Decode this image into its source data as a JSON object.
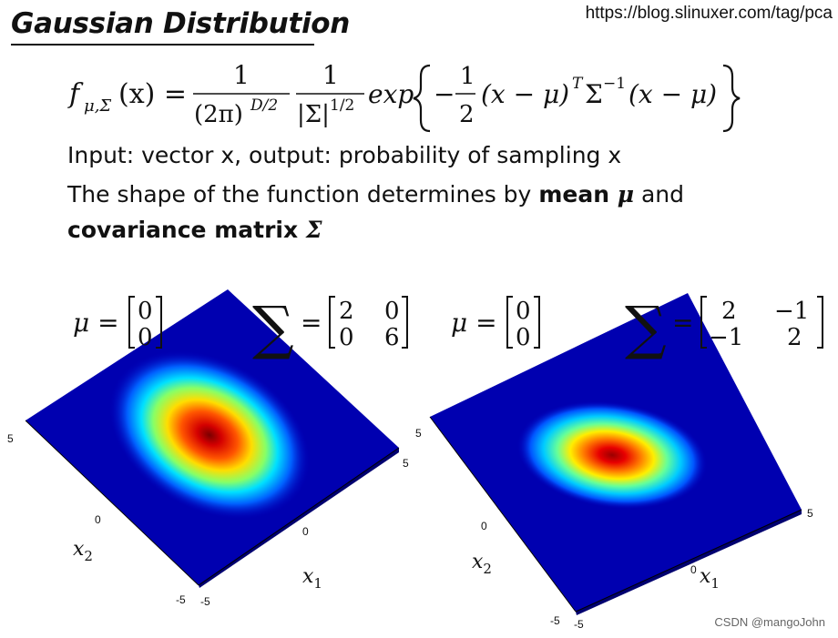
{
  "header": {
    "title": "Gaussian Distribution",
    "source_url": "https://blog.slinuxer.com/tag/pca"
  },
  "formula": {
    "lhs_f": "f",
    "lhs_sub": "μ,Σ",
    "lhs_arg": "(x) =",
    "frac1_num": "1",
    "frac1_den": "(2π)",
    "frac1_den_exp": "D/2",
    "frac2_num": "1",
    "frac2_den": "|Σ|",
    "frac2_den_exp": "1/2",
    "exp_word": "exp",
    "minus": "−",
    "half_num": "1",
    "half_den": "2",
    "term1": "(x − μ)",
    "term1_exp": "T",
    "sigma": "Σ",
    "sigma_exp": "−1",
    "term2": "(x − μ)"
  },
  "text": {
    "line1": "Input: vector x, output: probability of sampling x",
    "line2_prefix": "The shape of the function determines by ",
    "line2_bold": "mean ",
    "line2_bold_sym": "μ",
    "line2_suffix": " and",
    "line3_bold": "covariance matrix ",
    "line3_bold_sym": "Σ"
  },
  "plots": {
    "left": {
      "mu_label": "μ =",
      "mu": [
        "0",
        "0"
      ],
      "sigma_eq": "=",
      "sigma": [
        [
          "2",
          "0"
        ],
        [
          "0",
          "6"
        ]
      ],
      "ticks": {
        "x_left": "5",
        "x_mid": "0",
        "x_bottom_a": "-5",
        "x_bottom_b": "-5",
        "y_mid": "0",
        "y_right": "5"
      },
      "xlabel": "x",
      "xlabel_sub": "1",
      "ylabel": "x",
      "ylabel_sub": "2"
    },
    "right": {
      "mu_label": "μ =",
      "mu": [
        "0",
        "0"
      ],
      "sigma_eq": "=",
      "sigma": [
        [
          "2",
          "−1"
        ],
        [
          "−1",
          "2"
        ]
      ],
      "ticks": {
        "x_left": "5",
        "x_mid": "0",
        "x_bottom_a": "-5",
        "x_bottom_b": "-5",
        "y_mid": "0",
        "y_right": "5"
      },
      "xlabel": "x",
      "xlabel_sub": "1",
      "ylabel": "x",
      "ylabel_sub": "2"
    }
  },
  "colors": {
    "surface_base": "#0000b4",
    "jet_mid": "#00ffff",
    "jet_high": "#ffff00",
    "jet_peak": "#b40000"
  },
  "watermark": "CSDN @mangoJohn"
}
